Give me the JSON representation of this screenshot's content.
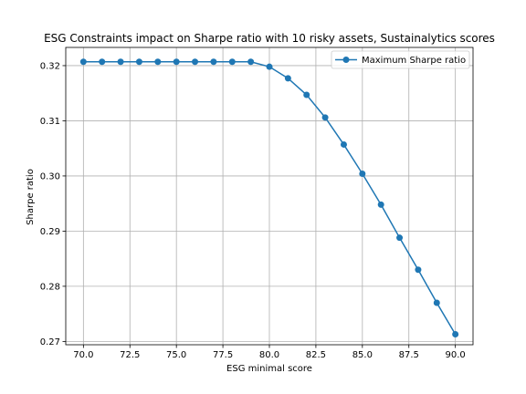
{
  "chart_data": {
    "type": "line",
    "title": "ESG Constraints impact on Sharpe ratio with 10 risky assets, Sustainalytics scores",
    "xlabel": "ESG minimal score",
    "ylabel": "Sharpe ratio",
    "xlim": [
      69.05,
      90.95
    ],
    "ylim": [
      0.2694,
      0.3233
    ],
    "xticks": [
      70.0,
      72.5,
      75.0,
      77.5,
      80.0,
      82.5,
      85.0,
      87.5,
      90.0
    ],
    "xtick_labels": [
      "70.0",
      "72.5",
      "75.0",
      "77.5",
      "80.0",
      "82.5",
      "85.0",
      "87.5",
      "90.0"
    ],
    "yticks": [
      0.27,
      0.28,
      0.29,
      0.3,
      0.31,
      0.32
    ],
    "ytick_labels": [
      "0.27",
      "0.28",
      "0.29",
      "0.30",
      "0.31",
      "0.32"
    ],
    "grid": true,
    "legend_position": "upper right",
    "series": [
      {
        "name": "Maximum Sharpe ratio",
        "color": "#1f77b4",
        "marker": "circle",
        "x": [
          70,
          71,
          72,
          73,
          74,
          75,
          76,
          77,
          78,
          79,
          80,
          81,
          82,
          83,
          84,
          85,
          86,
          87,
          88,
          89,
          90
        ],
        "y": [
          0.3207,
          0.3207,
          0.3207,
          0.3207,
          0.3207,
          0.3207,
          0.3207,
          0.3207,
          0.3207,
          0.3207,
          0.3198,
          0.3177,
          0.3147,
          0.3106,
          0.3057,
          0.3004,
          0.2948,
          0.2888,
          0.283,
          0.277,
          0.2713
        ]
      }
    ]
  }
}
